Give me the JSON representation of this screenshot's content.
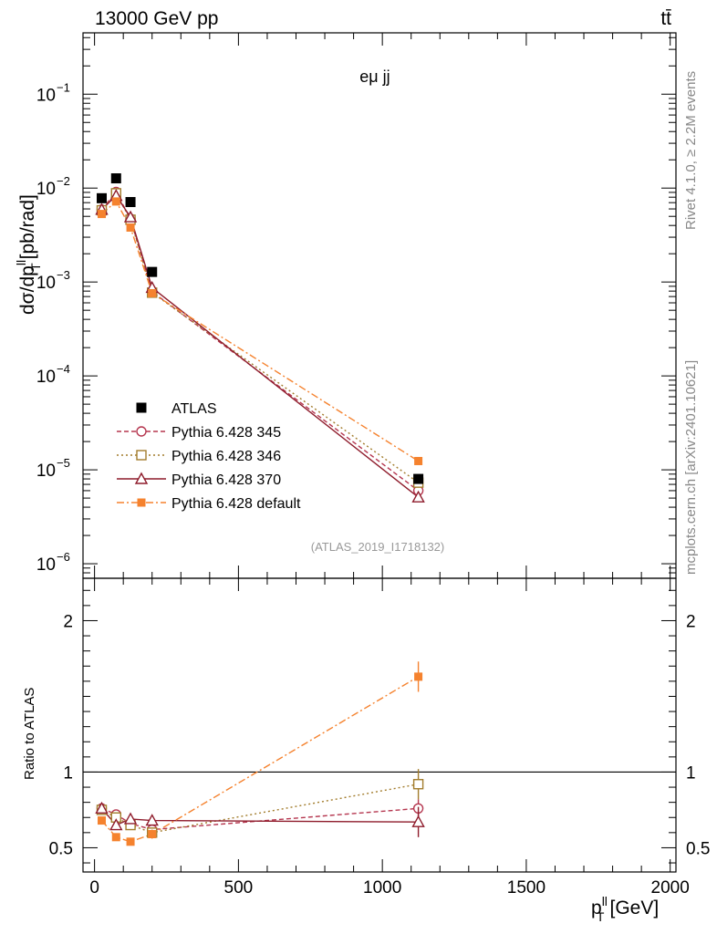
{
  "header": {
    "beam_label": "13000 GeV pp",
    "process_label": "tt̄"
  },
  "side_labels": {
    "rivet": "Rivet 4.1.0, ≥ 2.2M events",
    "source": "mcplots.cern.ch [arXiv:2401.10621]"
  },
  "chart_data": {
    "type": "scatter",
    "panel_title": "eμ jj",
    "analysis_tag": "(ATLAS_2019_I1718132)",
    "xlabel_main": "p",
    "xlabel_sup": "ll",
    "xlabel_sub": "T",
    "xlabel_unit": "[GeV]",
    "ylabel_main": "dσ/dp",
    "ylabel_sup": "ll",
    "ylabel_sub": "T",
    "ylabel_unit": "[pb/rad]",
    "ratio_ylabel": "Ratio to ATLAS",
    "xlim": [
      -40,
      2020
    ],
    "ylim_main": [
      7e-07,
      0.45
    ],
    "ylim_ratio": [
      0.34,
      2.28
    ],
    "x_ticks": [
      0,
      500,
      1000,
      1500,
      2000
    ],
    "x_tick_labels": [
      "0",
      "500",
      "1000",
      "1500",
      "2000"
    ],
    "y_ticks_main": [
      -6,
      -5,
      -4,
      -3,
      -2,
      -1
    ],
    "y_tick_labels_main": [
      "10",
      "10",
      "10",
      "10",
      "10",
      "10"
    ],
    "y_tick_exponents_main": [
      "−6",
      "−5",
      "−4",
      "−3",
      "−2",
      "−1"
    ],
    "y_ticks_ratio": [
      0.5,
      1,
      2
    ],
    "y_tick_labels_ratio": [
      "0.5",
      "1",
      "2"
    ],
    "x": [
      25,
      75,
      125,
      200,
      1125
    ],
    "data": {
      "name": "ATLAS",
      "values": [
        0.0078,
        0.0127,
        0.0071,
        0.00128,
        8e-06
      ],
      "color": "#000000"
    },
    "series": [
      {
        "name": "Pythia 6.428 345",
        "color": "#b5364f",
        "marker": "circle",
        "dash": "5,3",
        "values": [
          0.0059,
          0.0091,
          0.0047,
          0.00079,
          6e-06
        ],
        "ratio": [
          0.76,
          0.72,
          0.66,
          0.62,
          0.76
        ],
        "ratio_err": [
          0.02,
          0.02,
          0.02,
          0.03,
          0.06
        ]
      },
      {
        "name": "Pythia 6.428 346",
        "color": "#a27c2c",
        "marker": "square",
        "dash": "2,3",
        "values": [
          0.0058,
          0.0088,
          0.0046,
          0.00077,
          7.3e-06
        ],
        "ratio": [
          0.75,
          0.7,
          0.65,
          0.6,
          0.92
        ],
        "ratio_err": [
          0.02,
          0.02,
          0.02,
          0.03,
          0.1
        ]
      },
      {
        "name": "Pythia 6.428 370",
        "color": "#8e1b2b",
        "marker": "triangle",
        "dash": "",
        "values": [
          0.0059,
          0.0083,
          0.0049,
          0.00087,
          5.1e-06
        ],
        "ratio": [
          0.76,
          0.65,
          0.69,
          0.68,
          0.67
        ],
        "ratio_err": [
          0.02,
          0.02,
          0.02,
          0.03,
          0.1
        ]
      },
      {
        "name": "Pythia 6.428 default",
        "color": "#f5822e",
        "marker": "filled-square",
        "dash": "8,3,2,3",
        "values": [
          0.0053,
          0.0072,
          0.0038,
          0.00076,
          1.24e-05
        ],
        "ratio": [
          0.68,
          0.57,
          0.54,
          0.59,
          1.63
        ],
        "ratio_err": [
          0.02,
          0.02,
          0.02,
          0.03,
          0.1
        ]
      }
    ]
  }
}
